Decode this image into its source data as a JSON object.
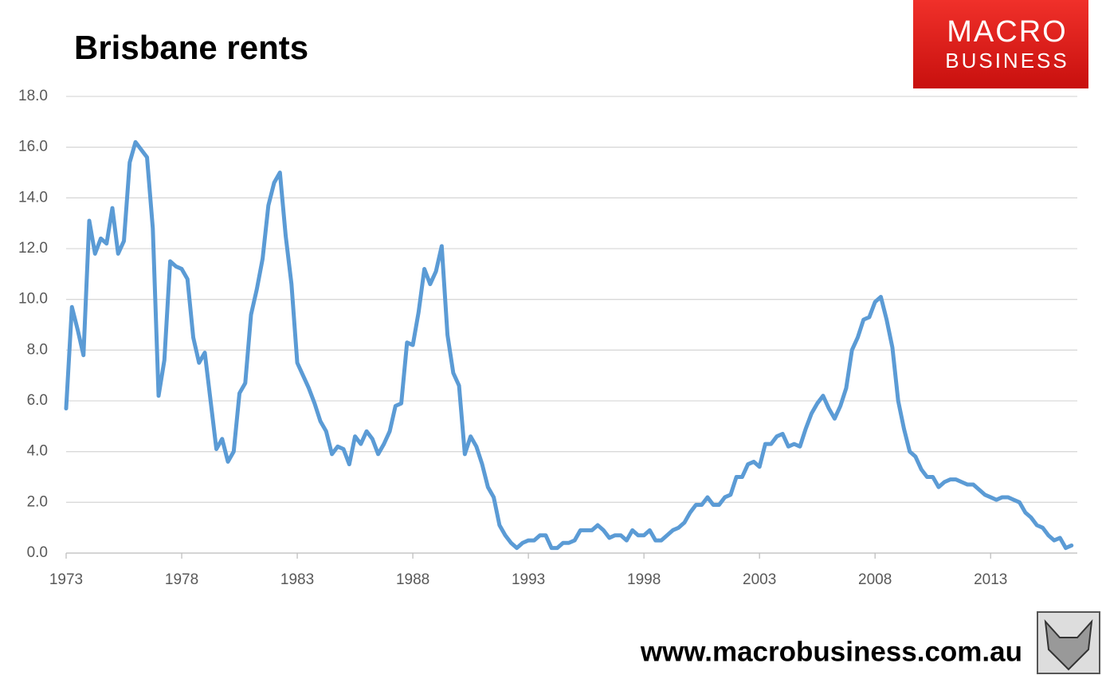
{
  "chart_data": {
    "type": "line",
    "title": "Brisbane rents",
    "x": [
      1973,
      1973.25,
      1973.5,
      1973.75,
      1974,
      1974.25,
      1974.5,
      1974.75,
      1975,
      1975.25,
      1975.5,
      1975.75,
      1976,
      1976.25,
      1976.5,
      1976.75,
      1977,
      1977.25,
      1977.5,
      1977.75,
      1978,
      1978.25,
      1978.5,
      1978.75,
      1979,
      1979.25,
      1979.5,
      1979.75,
      1980,
      1980.25,
      1980.5,
      1980.75,
      1981,
      1981.25,
      1981.5,
      1981.75,
      1982,
      1982.25,
      1982.5,
      1982.75,
      1983,
      1983.25,
      1983.5,
      1983.75,
      1984,
      1984.25,
      1984.5,
      1984.75,
      1985,
      1985.25,
      1985.5,
      1985.75,
      1986,
      1986.25,
      1986.5,
      1986.75,
      1987,
      1987.25,
      1987.5,
      1987.75,
      1988,
      1988.25,
      1988.5,
      1988.75,
      1989,
      1989.25,
      1989.5,
      1989.75,
      1990,
      1990.25,
      1990.5,
      1990.75,
      1991,
      1991.25,
      1991.5,
      1991.75,
      1992,
      1992.25,
      1992.5,
      1992.75,
      1993,
      1993.25,
      1993.5,
      1993.75,
      1994,
      1994.25,
      1994.5,
      1994.75,
      1995,
      1995.25,
      1995.5,
      1995.75,
      1996,
      1996.25,
      1996.5,
      1996.75,
      1997,
      1997.25,
      1997.5,
      1997.75,
      1998,
      1998.25,
      1998.5,
      1998.75,
      1999,
      1999.25,
      1999.5,
      1999.75,
      2000,
      2000.25,
      2000.5,
      2000.75,
      2001,
      2001.25,
      2001.5,
      2001.75,
      2002,
      2002.25,
      2002.5,
      2002.75,
      2003,
      2003.25,
      2003.5,
      2003.75,
      2004,
      2004.25,
      2004.5,
      2004.75,
      2005,
      2005.25,
      2005.5,
      2005.75,
      2006,
      2006.25,
      2006.5,
      2006.75,
      2007,
      2007.25,
      2007.5,
      2007.75,
      2008,
      2008.25,
      2008.5,
      2008.75,
      2009,
      2009.25,
      2009.5,
      2009.75,
      2010,
      2010.25,
      2010.5,
      2010.75,
      2011,
      2011.25,
      2011.5,
      2011.75,
      2012,
      2012.25,
      2012.5,
      2012.75,
      2013,
      2013.25,
      2013.5,
      2013.75,
      2014,
      2014.25,
      2014.5,
      2014.75,
      2015,
      2015.25,
      2015.5,
      2015.75,
      2016,
      2016.25,
      2016.5
    ],
    "series": [
      {
        "color": "#5b9bd5",
        "values": [
          5.7,
          9.7,
          8.8,
          7.8,
          13.1,
          11.8,
          12.4,
          12.2,
          13.6,
          11.8,
          12.3,
          15.4,
          16.2,
          15.9,
          15.6,
          12.8,
          6.2,
          7.6,
          11.5,
          11.3,
          11.2,
          10.8,
          8.5,
          7.5,
          7.9,
          6.0,
          4.1,
          4.5,
          3.6,
          4.0,
          6.3,
          6.7,
          9.4,
          10.4,
          11.6,
          13.7,
          14.6,
          15.0,
          12.5,
          10.6,
          7.5,
          7.0,
          6.5,
          5.9,
          5.2,
          4.8,
          3.9,
          4.2,
          4.1,
          3.5,
          4.6,
          4.3,
          4.8,
          4.5,
          3.9,
          4.3,
          4.8,
          5.8,
          5.9,
          8.3,
          8.2,
          9.5,
          11.2,
          10.6,
          11.1,
          12.1,
          8.6,
          7.1,
          6.6,
          3.9,
          4.6,
          4.2,
          3.5,
          2.6,
          2.2,
          1.1,
          0.7,
          0.4,
          0.2,
          0.4,
          0.5,
          0.5,
          0.7,
          0.7,
          0.2,
          0.2,
          0.4,
          0.4,
          0.5,
          0.9,
          0.9,
          0.9,
          1.1,
          0.9,
          0.6,
          0.7,
          0.7,
          0.5,
          0.9,
          0.7,
          0.7,
          0.9,
          0.5,
          0.5,
          0.7,
          0.9,
          1.0,
          1.2,
          1.6,
          1.9,
          1.9,
          2.2,
          1.9,
          1.9,
          2.2,
          2.3,
          3.0,
          3.0,
          3.5,
          3.6,
          3.4,
          4.3,
          4.3,
          4.6,
          4.7,
          4.2,
          4.3,
          4.2,
          4.9,
          5.5,
          5.9,
          6.2,
          5.7,
          5.3,
          5.8,
          6.5,
          8.0,
          8.5,
          9.2,
          9.3,
          9.9,
          10.1,
          9.2,
          8.1,
          6.0,
          4.9,
          4.0,
          3.8,
          3.3,
          3.0,
          3.0,
          2.6,
          2.8,
          2.9,
          2.9,
          2.8,
          2.7,
          2.7,
          2.5,
          2.3,
          2.2,
          2.1,
          2.2,
          2.2,
          2.1,
          2.0,
          1.6,
          1.4,
          1.1,
          1.0,
          0.7,
          0.5,
          0.6,
          0.2,
          0.3
        ]
      }
    ],
    "xlim": [
      1973,
      2016.75
    ],
    "xticks": [
      1973,
      1978,
      1983,
      1988,
      1993,
      1998,
      2003,
      2008,
      2013
    ],
    "ylim": [
      0,
      18
    ],
    "yticks": [
      {
        "value": 0,
        "label": "0.0"
      },
      {
        "value": 2,
        "label": "2.0"
      },
      {
        "value": 4,
        "label": "4.0"
      },
      {
        "value": 6,
        "label": "6.0"
      },
      {
        "value": 8,
        "label": "8.0"
      },
      {
        "value": 10,
        "label": "10.0"
      },
      {
        "value": 12,
        "label": "12.0"
      },
      {
        "value": 14,
        "label": "14.0"
      },
      {
        "value": 16,
        "label": "16.0"
      },
      {
        "value": 18,
        "label": "18.0"
      }
    ],
    "grid": true
  },
  "branding": {
    "logo_top": "MACRO",
    "logo_bottom": "BUSINESS",
    "url": "www.macrobusiness.com.au"
  }
}
